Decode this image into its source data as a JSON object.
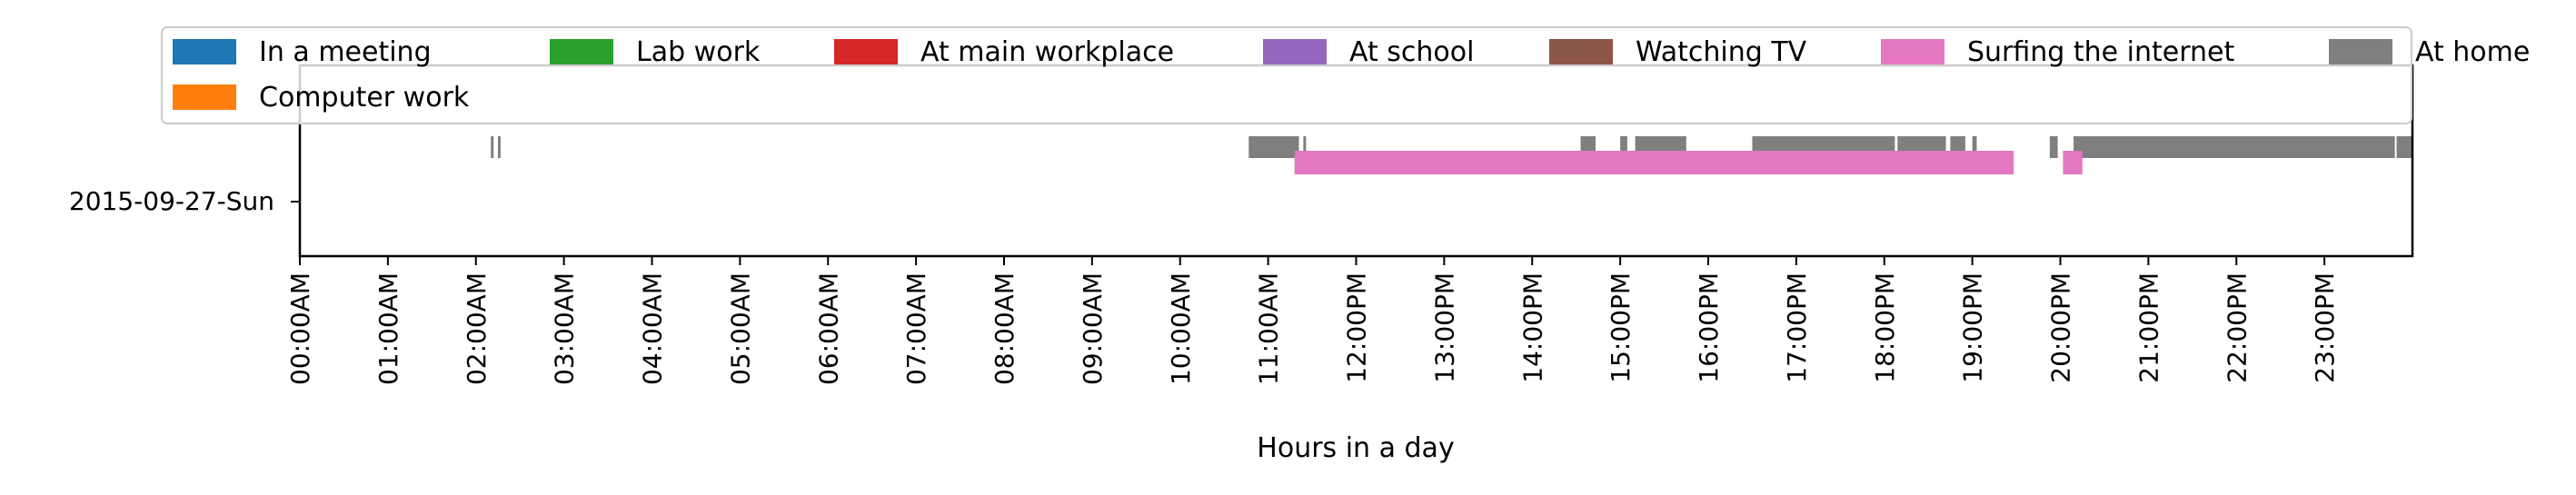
{
  "chart_data": {
    "type": "timeline",
    "title": "",
    "xlabel": "Hours in a day",
    "ylabel": "",
    "xlim": [
      0,
      24
    ],
    "ycategory": "2015-09-27-Sun",
    "xticks": [
      {
        "value": 0,
        "label": "00:00AM"
      },
      {
        "value": 1,
        "label": "01:00AM"
      },
      {
        "value": 2,
        "label": "02:00AM"
      },
      {
        "value": 3,
        "label": "03:00AM"
      },
      {
        "value": 4,
        "label": "04:00AM"
      },
      {
        "value": 5,
        "label": "05:00AM"
      },
      {
        "value": 6,
        "label": "06:00AM"
      },
      {
        "value": 7,
        "label": "07:00AM"
      },
      {
        "value": 8,
        "label": "08:00AM"
      },
      {
        "value": 9,
        "label": "09:00AM"
      },
      {
        "value": 10,
        "label": "10:00AM"
      },
      {
        "value": 11,
        "label": "11:00AM"
      },
      {
        "value": 12,
        "label": "12:00PM"
      },
      {
        "value": 13,
        "label": "13:00PM"
      },
      {
        "value": 14,
        "label": "14:00PM"
      },
      {
        "value": 15,
        "label": "15:00PM"
      },
      {
        "value": 16,
        "label": "16:00PM"
      },
      {
        "value": 17,
        "label": "17:00PM"
      },
      {
        "value": 18,
        "label": "18:00PM"
      },
      {
        "value": 19,
        "label": "19:00PM"
      },
      {
        "value": 20,
        "label": "20:00PM"
      },
      {
        "value": 21,
        "label": "21:00PM"
      },
      {
        "value": 22,
        "label": "22:00PM"
      },
      {
        "value": 23,
        "label": "23:00PM"
      }
    ],
    "legend_placement": "top, overlapping plot",
    "series": [
      {
        "name": "In a meeting",
        "color": "#1f77b4",
        "lane": 0,
        "intervals": []
      },
      {
        "name": "Lab work",
        "color": "#2ca02c",
        "lane": 0,
        "intervals": []
      },
      {
        "name": "At main workplace",
        "color": "#d62728",
        "lane": 0,
        "intervals": []
      },
      {
        "name": "At school",
        "color": "#9467bd",
        "lane": 0,
        "intervals": []
      },
      {
        "name": "Watching TV",
        "color": "#8c564b",
        "lane": 0,
        "intervals": []
      },
      {
        "name": "Surfing the internet",
        "color": "#e377c2",
        "lane": 1,
        "intervals": [
          [
            11.3,
            19.47
          ],
          [
            20.03,
            20.25
          ]
        ]
      },
      {
        "name": "At home",
        "color": "#7f7f7f",
        "lane": 2,
        "intervals": [
          [
            2.17,
            2.2
          ],
          [
            2.25,
            2.28
          ],
          [
            10.78,
            11.35
          ],
          [
            11.4,
            11.43
          ],
          [
            14.55,
            14.72
          ],
          [
            15.0,
            15.08
          ],
          [
            15.17,
            15.75
          ],
          [
            16.5,
            18.12
          ],
          [
            18.15,
            18.7
          ],
          [
            18.75,
            18.92
          ],
          [
            19.0,
            19.05
          ],
          [
            19.88,
            19.97
          ],
          [
            20.15,
            23.8
          ],
          [
            23.82,
            24.0
          ]
        ]
      },
      {
        "name": "Computer work",
        "color": "#ff7f0e",
        "lane": 0,
        "intervals": []
      }
    ]
  }
}
